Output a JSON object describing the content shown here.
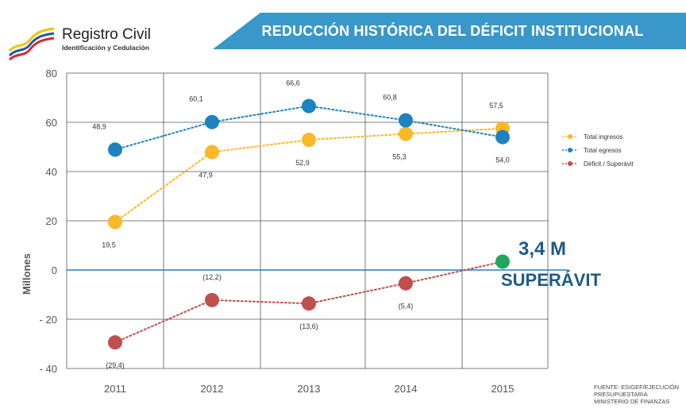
{
  "header": {
    "title": "REDUCCIÓN HISTÓRICA DEL DÉFICIT INSTITUCIONAL",
    "banner_color": "#3a97c9"
  },
  "logo": {
    "name": "Registro Civil",
    "subtitle": "Identificación y Cedulación",
    "icon": "flag-wave-emblem-icon"
  },
  "source": {
    "lines": [
      "FUENTE: ESIGEF/EJECUCIÓN",
      "PRESUPUESTARIA",
      "MINISTERIO DE FINANZAS"
    ]
  },
  "callout": {
    "value": "3,4 M",
    "label": "SUPERÁVIT",
    "color": "#1d5b86"
  },
  "chart_data": {
    "type": "line",
    "categories": [
      "2011",
      "2012",
      "2013",
      "2014",
      "2015"
    ],
    "ylabel": "Millones",
    "ylim": [
      -40,
      80
    ],
    "yticks": [
      -40,
      -20,
      0,
      20,
      40,
      60,
      80
    ],
    "ytick_labels": [
      "- 40",
      "- 20",
      "0",
      "20",
      "40",
      "60",
      "80"
    ],
    "grid": true,
    "legend": "right",
    "series": [
      {
        "name": "Total ingresos",
        "color": "#fbb827",
        "values": [
          19.5,
          47.9,
          52.9,
          55.3,
          57.5
        ],
        "labels": [
          "19,5",
          "47,9",
          "52,9",
          "55,3",
          "57,5"
        ],
        "label_pos": [
          "below",
          "below",
          "below",
          "below",
          "above"
        ]
      },
      {
        "name": "Total egresos",
        "color": "#1c83c0",
        "values": [
          48.9,
          60.1,
          66.6,
          60.8,
          54.0
        ],
        "labels": [
          "48,9",
          "60,1",
          "66,6",
          "60,8",
          "54,0"
        ],
        "label_pos": [
          "above",
          "above",
          "above",
          "above",
          "below"
        ]
      },
      {
        "name": "Déficit / Superávit",
        "color": "#c0504d",
        "values": [
          -29.4,
          -12.2,
          -13.6,
          -5.4,
          3.4
        ],
        "labels": [
          "(29,4)",
          "(12,2)",
          "(13,6)",
          "(5,4)",
          ""
        ],
        "label_pos": [
          "below",
          "above",
          "below",
          "below",
          "none"
        ],
        "highlight_last_color": "#1fa65a"
      }
    ]
  }
}
